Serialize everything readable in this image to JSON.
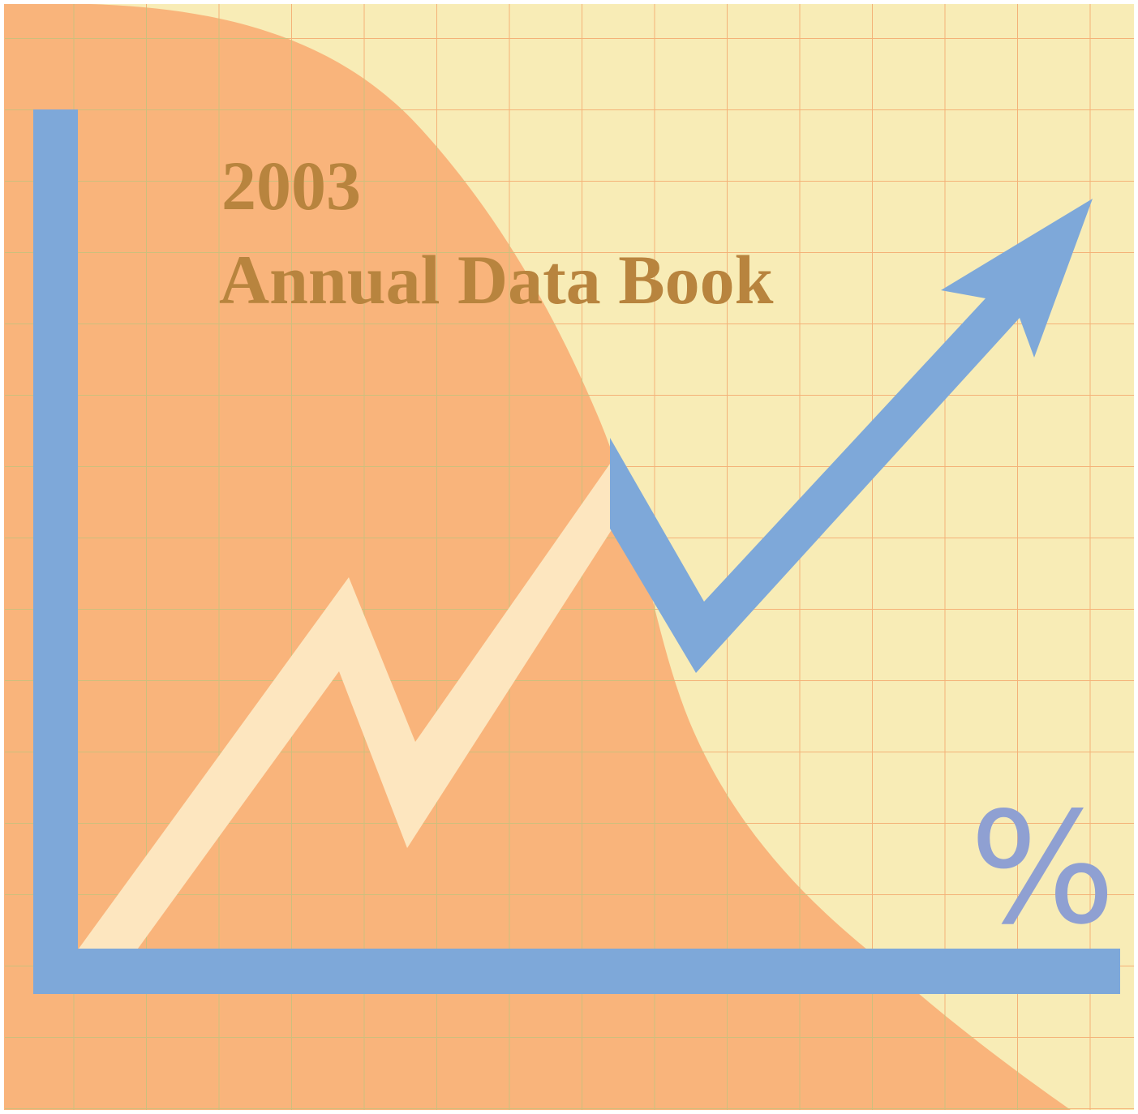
{
  "cover": {
    "year": "2003",
    "title": "Annual Data Book",
    "symbol": "%"
  }
}
